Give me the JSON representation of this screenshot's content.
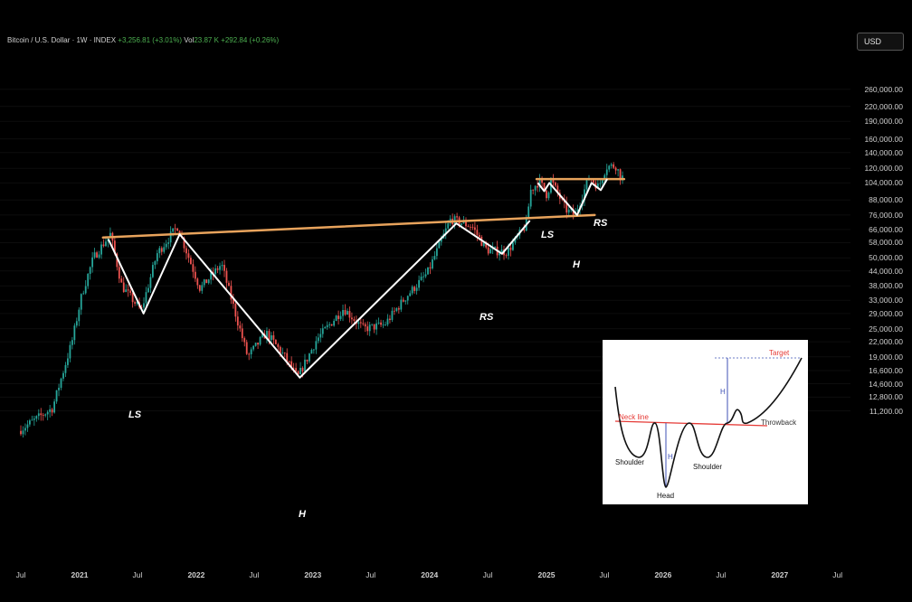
{
  "header": {
    "symbol": "Bitcoin / U.S. Dollar · 1W · INDEX",
    "change": "+3,256.81 (+3.01%)",
    "vol_label": "Vol",
    "vol_value": "23.87 K",
    "vol_change": "+292.84 (+0.26%)"
  },
  "currency_button": "USD",
  "pattern_labels": {
    "ls_big": "LS",
    "h_big": "H",
    "rs_big": "RS",
    "ls_small": "LS",
    "h_small": "H",
    "rs_small": "RS"
  },
  "inset": {
    "target": "Target",
    "neck_line": "Neck line",
    "throwback": "Throwback",
    "left_shoulder": "Shoulder",
    "right_shoulder": "Shoulder",
    "head": "Head",
    "h_marker_1": "H",
    "h_marker_2": "H"
  },
  "colors": {
    "up": "#26a69a",
    "down": "#ef5350",
    "neckline": "#e8a35c",
    "pattern": "#ffffff",
    "inset_neck": "#e53935",
    "inset_measure": "#3f51b5"
  },
  "chart_data": {
    "type": "candlestick",
    "title": "Bitcoin / U.S. Dollar · 1W · INDEX",
    "scale": "log",
    "ylim": [
      10000,
      280000
    ],
    "y_ticks": [
      "260,000.00",
      "220,000.00",
      "190,000.00",
      "160,000.00",
      "140,000.00",
      "120,000.00",
      "104,000.00",
      "88,000.00",
      "76,000.00",
      "66,000.00",
      "58,000.00",
      "50,000.00",
      "44,000.00",
      "38,000.00",
      "33,000.00",
      "29,000.00",
      "25,000.00",
      "22,000.00",
      "19,000.00",
      "16,600.00",
      "14,600.00",
      "12,800.00",
      "11,200.00"
    ],
    "x_ticks": [
      "Jul",
      "2021",
      "Jul",
      "2022",
      "Jul",
      "2023",
      "Jul",
      "2024",
      "Jul",
      "2025",
      "Jul",
      "2026",
      "Jul",
      "2027",
      "Jul"
    ],
    "price_path": [
      [
        "2020-07-01",
        9200
      ],
      [
        "2020-09-01",
        10500
      ],
      [
        "2020-10-15",
        11500
      ],
      [
        "2020-11-15",
        16000
      ],
      [
        "2020-12-15",
        22000
      ],
      [
        "2021-01-15",
        35000
      ],
      [
        "2021-02-20",
        50000
      ],
      [
        "2021-04-14",
        63000
      ],
      [
        "2021-05-20",
        38000
      ],
      [
        "2021-07-20",
        29800
      ],
      [
        "2021-09-07",
        52000
      ],
      [
        "2021-11-10",
        68000
      ],
      [
        "2022-01-20",
        37000
      ],
      [
        "2022-03-28",
        47000
      ],
      [
        "2022-06-18",
        19000
      ],
      [
        "2022-08-15",
        24000
      ],
      [
        "2022-10-10",
        19200
      ],
      [
        "2022-11-21",
        15500
      ],
      [
        "2023-01-20",
        22500
      ],
      [
        "2023-04-14",
        30500
      ],
      [
        "2023-06-15",
        25000
      ],
      [
        "2023-08-20",
        26000
      ],
      [
        "2023-10-25",
        34000
      ],
      [
        "2024-01-01",
        43000
      ],
      [
        "2024-03-14",
        73000
      ],
      [
        "2024-05-20",
        68000
      ],
      [
        "2024-07-05",
        54000
      ],
      [
        "2024-09-07",
        53000
      ],
      [
        "2024-11-05",
        69000
      ],
      [
        "2024-11-20",
        97000
      ],
      [
        "2024-12-17",
        106000
      ],
      [
        "2025-01-10",
        92000
      ],
      [
        "2025-01-22",
        107000
      ],
      [
        "2025-03-10",
        80000
      ],
      [
        "2025-04-07",
        76000
      ],
      [
        "2025-05-22",
        110000
      ],
      [
        "2025-06-20",
        100000
      ],
      [
        "2025-07-14",
        122000
      ],
      [
        "2025-08-14",
        123000
      ],
      [
        "2025-08-28",
        110000
      ]
    ],
    "annotations": [
      {
        "type": "neckline",
        "from": [
          "2021-03-15",
          61000
        ],
        "to": [
          "2025-06-01",
          76000
        ]
      },
      {
        "type": "neckline",
        "from": [
          "2024-12-01",
          108000
        ],
        "to": [
          "2025-09-01",
          108000
        ]
      },
      {
        "type": "zigzag",
        "points": [
          [
            "2021-04-01",
            60000
          ],
          [
            "2021-07-20",
            29000
          ],
          [
            "2021-11-10",
            63000
          ],
          [
            "2022-11-21",
            15500
          ],
          [
            "2024-03-25",
            70000
          ],
          [
            "2024-08-15",
            52000
          ],
          [
            "2024-11-10",
            72000
          ]
        ]
      },
      {
        "type": "zigzag",
        "points": [
          [
            "2024-12-05",
            104000
          ],
          [
            "2024-12-25",
            96000
          ],
          [
            "2025-01-10",
            104000
          ],
          [
            "2025-04-07",
            76000
          ],
          [
            "2025-05-22",
            104000
          ],
          [
            "2025-06-20",
            97000
          ],
          [
            "2025-07-10",
            108000
          ]
        ]
      }
    ]
  }
}
